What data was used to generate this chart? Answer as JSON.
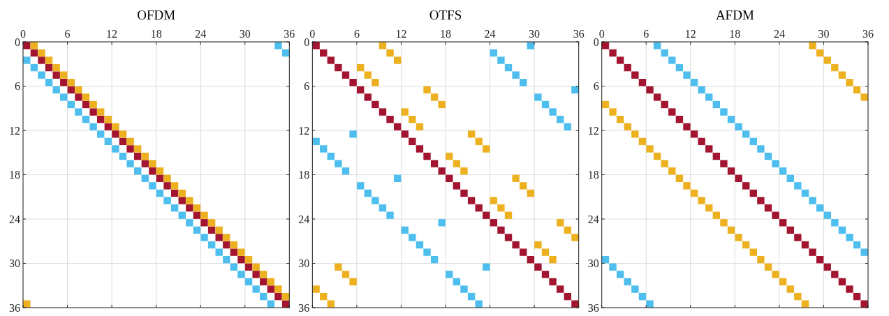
{
  "chart_data": [
    {
      "type": "scatter",
      "title": "OFDM",
      "marker": "square",
      "grid": true,
      "xlim": [
        0,
        36
      ],
      "ylim": [
        36,
        0
      ],
      "xticks": [
        0,
        6,
        12,
        18,
        24,
        30,
        36
      ],
      "yticks": [
        0,
        6,
        12,
        18,
        24,
        30,
        36
      ],
      "series": [
        {
          "color": "#a2142f",
          "x": [
            0.5,
            1.5,
            2.5,
            3.5,
            4.5,
            5.5,
            6.5,
            7.5,
            8.5,
            9.5,
            10.5,
            11.5,
            12.5,
            13.5,
            14.5,
            15.5,
            16.5,
            17.5,
            18.5,
            19.5,
            20.5,
            21.5,
            22.5,
            23.5,
            24.5,
            25.5,
            26.5,
            27.5,
            28.5,
            29.5,
            30.5,
            31.5,
            32.5,
            33.5,
            34.5,
            35.5
          ],
          "values": [
            0.5,
            1.5,
            2.5,
            3.5,
            4.5,
            5.5,
            6.5,
            7.5,
            8.5,
            9.5,
            10.5,
            11.5,
            12.5,
            13.5,
            14.5,
            15.5,
            16.5,
            17.5,
            18.5,
            19.5,
            20.5,
            21.5,
            22.5,
            23.5,
            24.5,
            25.5,
            26.5,
            27.5,
            28.5,
            29.5,
            30.5,
            31.5,
            32.5,
            33.5,
            34.5,
            35.5
          ]
        },
        {
          "color": "#edb120",
          "x": [
            1.5,
            2.5,
            3.5,
            4.5,
            5.5,
            6.5,
            7.5,
            8.5,
            9.5,
            10.5,
            11.5,
            12.5,
            13.5,
            14.5,
            15.5,
            16.5,
            17.5,
            18.5,
            19.5,
            20.5,
            21.5,
            22.5,
            23.5,
            24.5,
            25.5,
            26.5,
            27.5,
            28.5,
            29.5,
            30.5,
            31.5,
            32.5,
            33.5,
            34.5,
            35.5,
            0.5
          ],
          "values": [
            0.5,
            1.5,
            2.5,
            3.5,
            4.5,
            5.5,
            6.5,
            7.5,
            8.5,
            9.5,
            10.5,
            11.5,
            12.5,
            13.5,
            14.5,
            15.5,
            16.5,
            17.5,
            18.5,
            19.5,
            20.5,
            21.5,
            22.5,
            23.5,
            24.5,
            25.5,
            26.5,
            27.5,
            28.5,
            29.5,
            30.5,
            31.5,
            32.5,
            33.5,
            34.5,
            35.5
          ]
        },
        {
          "color": "#4dbeee",
          "x": [
            34.5,
            35.5,
            0.5,
            1.5,
            2.5,
            3.5,
            4.5,
            5.5,
            6.5,
            7.5,
            8.5,
            9.5,
            10.5,
            11.5,
            12.5,
            13.5,
            14.5,
            15.5,
            16.5,
            17.5,
            18.5,
            19.5,
            20.5,
            21.5,
            22.5,
            23.5,
            24.5,
            25.5,
            26.5,
            27.5,
            28.5,
            29.5,
            30.5,
            31.5,
            32.5,
            33.5
          ],
          "values": [
            0.5,
            1.5,
            2.5,
            3.5,
            4.5,
            5.5,
            6.5,
            7.5,
            8.5,
            9.5,
            10.5,
            11.5,
            12.5,
            13.5,
            14.5,
            15.5,
            16.5,
            17.5,
            18.5,
            19.5,
            20.5,
            21.5,
            22.5,
            23.5,
            24.5,
            25.5,
            26.5,
            27.5,
            28.5,
            29.5,
            30.5,
            31.5,
            32.5,
            33.5,
            34.5,
            35.5
          ]
        }
      ]
    },
    {
      "type": "scatter",
      "title": "OTFS",
      "marker": "square",
      "grid": true,
      "xlim": [
        0,
        36
      ],
      "ylim": [
        36,
        0
      ],
      "xticks": [
        0,
        6,
        12,
        18,
        24,
        30,
        36
      ],
      "yticks": [
        0,
        6,
        12,
        18,
        24,
        30,
        36
      ],
      "series": [
        {
          "color": "#a2142f",
          "x": [
            0.5,
            1.5,
            2.5,
            3.5,
            4.5,
            5.5,
            6.5,
            7.5,
            8.5,
            9.5,
            10.5,
            11.5,
            12.5,
            13.5,
            14.5,
            15.5,
            16.5,
            17.5,
            18.5,
            19.5,
            20.5,
            21.5,
            22.5,
            23.5,
            24.5,
            25.5,
            26.5,
            27.5,
            28.5,
            29.5,
            30.5,
            31.5,
            32.5,
            33.5,
            34.5,
            35.5
          ],
          "values": [
            0.5,
            1.5,
            2.5,
            3.5,
            4.5,
            5.5,
            6.5,
            7.5,
            8.5,
            9.5,
            10.5,
            11.5,
            12.5,
            13.5,
            14.5,
            15.5,
            16.5,
            17.5,
            18.5,
            19.5,
            20.5,
            21.5,
            22.5,
            23.5,
            24.5,
            25.5,
            26.5,
            27.5,
            28.5,
            29.5,
            30.5,
            31.5,
            32.5,
            33.5,
            34.5,
            35.5
          ]
        },
        {
          "color": "#edb120",
          "x": [
            9.5,
            10.5,
            11.5,
            6.5,
            7.5,
            8.5,
            15.5,
            16.5,
            17.5,
            12.5,
            13.5,
            14.5,
            21.5,
            22.5,
            23.5,
            18.5,
            19.5,
            20.5,
            27.5,
            28.5,
            29.5,
            24.5,
            25.5,
            26.5,
            33.5,
            34.5,
            35.5,
            30.5,
            31.5,
            32.5,
            3.5,
            4.5,
            5.5,
            0.5,
            1.5,
            2.5
          ],
          "values": [
            0.5,
            1.5,
            2.5,
            3.5,
            4.5,
            5.5,
            6.5,
            7.5,
            8.5,
            9.5,
            10.5,
            11.5,
            12.5,
            13.5,
            14.5,
            15.5,
            16.5,
            17.5,
            18.5,
            19.5,
            20.5,
            21.5,
            22.5,
            23.5,
            24.5,
            25.5,
            26.5,
            27.5,
            28.5,
            29.5,
            30.5,
            31.5,
            32.5,
            33.5,
            34.5,
            35.5
          ]
        },
        {
          "color": "#4dbeee",
          "x": [
            29.5,
            24.5,
            25.5,
            26.5,
            27.5,
            28.5,
            35.5,
            30.5,
            31.5,
            32.5,
            33.5,
            34.5,
            5.5,
            0.5,
            1.5,
            2.5,
            3.5,
            4.5,
            11.5,
            6.5,
            7.5,
            8.5,
            9.5,
            10.5,
            17.5,
            12.5,
            13.5,
            14.5,
            15.5,
            16.5,
            23.5,
            18.5,
            19.5,
            20.5,
            21.5,
            22.5
          ],
          "values": [
            0.5,
            1.5,
            2.5,
            3.5,
            4.5,
            5.5,
            6.5,
            7.5,
            8.5,
            9.5,
            10.5,
            11.5,
            12.5,
            13.5,
            14.5,
            15.5,
            16.5,
            17.5,
            18.5,
            19.5,
            20.5,
            21.5,
            22.5,
            23.5,
            24.5,
            25.5,
            26.5,
            27.5,
            28.5,
            29.5,
            30.5,
            31.5,
            32.5,
            33.5,
            34.5,
            35.5
          ]
        }
      ]
    },
    {
      "type": "scatter",
      "title": "AFDM",
      "marker": "square",
      "grid": true,
      "xlim": [
        0,
        36
      ],
      "ylim": [
        36,
        0
      ],
      "xticks": [
        0,
        6,
        12,
        18,
        24,
        30,
        36
      ],
      "yticks": [
        0,
        6,
        12,
        18,
        24,
        30,
        36
      ],
      "series": [
        {
          "color": "#a2142f",
          "x": [
            0.5,
            1.5,
            2.5,
            3.5,
            4.5,
            5.5,
            6.5,
            7.5,
            8.5,
            9.5,
            10.5,
            11.5,
            12.5,
            13.5,
            14.5,
            15.5,
            16.5,
            17.5,
            18.5,
            19.5,
            20.5,
            21.5,
            22.5,
            23.5,
            24.5,
            25.5,
            26.5,
            27.5,
            28.5,
            29.5,
            30.5,
            31.5,
            32.5,
            33.5,
            34.5,
            35.5
          ],
          "values": [
            0.5,
            1.5,
            2.5,
            3.5,
            4.5,
            5.5,
            6.5,
            7.5,
            8.5,
            9.5,
            10.5,
            11.5,
            12.5,
            13.5,
            14.5,
            15.5,
            16.5,
            17.5,
            18.5,
            19.5,
            20.5,
            21.5,
            22.5,
            23.5,
            24.5,
            25.5,
            26.5,
            27.5,
            28.5,
            29.5,
            30.5,
            31.5,
            32.5,
            33.5,
            34.5,
            35.5
          ]
        },
        {
          "color": "#edb120",
          "x": [
            28.5,
            29.5,
            30.5,
            31.5,
            32.5,
            33.5,
            34.5,
            35.5,
            0.5,
            1.5,
            2.5,
            3.5,
            4.5,
            5.5,
            6.5,
            7.5,
            8.5,
            9.5,
            10.5,
            11.5,
            12.5,
            13.5,
            14.5,
            15.5,
            16.5,
            17.5,
            18.5,
            19.5,
            20.5,
            21.5,
            22.5,
            23.5,
            24.5,
            25.5,
            26.5,
            27.5
          ],
          "values": [
            0.5,
            1.5,
            2.5,
            3.5,
            4.5,
            5.5,
            6.5,
            7.5,
            8.5,
            9.5,
            10.5,
            11.5,
            12.5,
            13.5,
            14.5,
            15.5,
            16.5,
            17.5,
            18.5,
            19.5,
            20.5,
            21.5,
            22.5,
            23.5,
            24.5,
            25.5,
            26.5,
            27.5,
            28.5,
            29.5,
            30.5,
            31.5,
            32.5,
            33.5,
            34.5,
            35.5
          ]
        },
        {
          "color": "#4dbeee",
          "x": [
            7.5,
            8.5,
            9.5,
            10.5,
            11.5,
            12.5,
            13.5,
            14.5,
            15.5,
            16.5,
            17.5,
            18.5,
            19.5,
            20.5,
            21.5,
            22.5,
            23.5,
            24.5,
            25.5,
            26.5,
            27.5,
            28.5,
            29.5,
            30.5,
            31.5,
            32.5,
            33.5,
            34.5,
            35.5,
            0.5,
            1.5,
            2.5,
            3.5,
            4.5,
            5.5,
            6.5
          ],
          "values": [
            0.5,
            1.5,
            2.5,
            3.5,
            4.5,
            5.5,
            6.5,
            7.5,
            8.5,
            9.5,
            10.5,
            11.5,
            12.5,
            13.5,
            14.5,
            15.5,
            16.5,
            17.5,
            18.5,
            19.5,
            20.5,
            21.5,
            22.5,
            23.5,
            24.5,
            25.5,
            26.5,
            27.5,
            28.5,
            29.5,
            30.5,
            31.5,
            32.5,
            33.5,
            34.5,
            35.5
          ]
        }
      ]
    }
  ]
}
